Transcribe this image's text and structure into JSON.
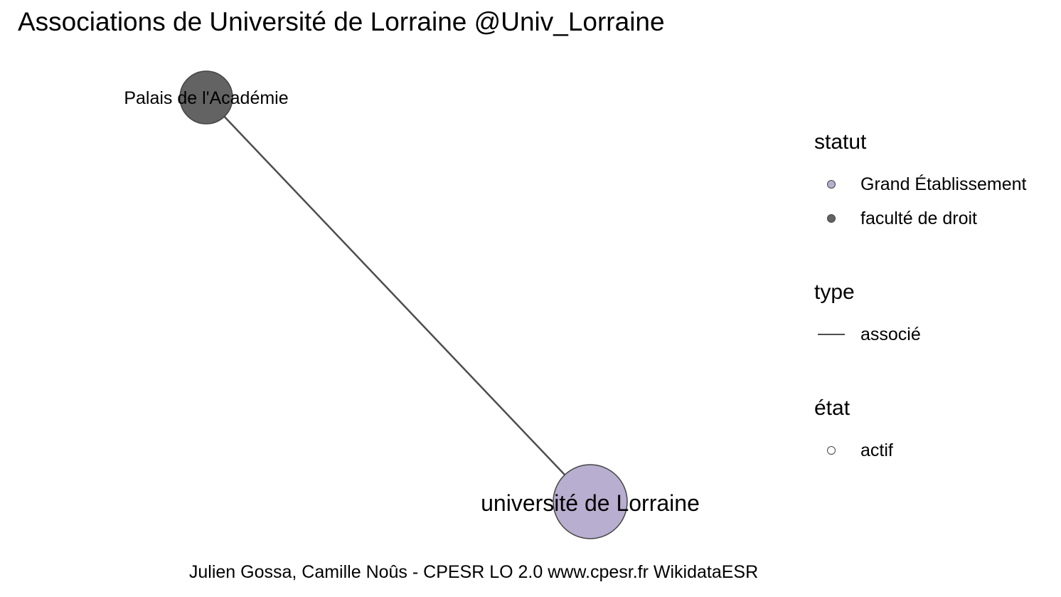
{
  "title": "Associations de Université de Lorraine @Univ_Lorraine",
  "caption": "Julien Gossa, Camille Noûs - CPESR LO 2.0 www.cpesr.fr WikidataESR",
  "nodes": [
    {
      "label": "Palais de l'Académie",
      "statut": "faculté de droit",
      "etat": "actif",
      "color": "#636363"
    },
    {
      "label": "université de Lorraine",
      "statut": "Grand Établissement",
      "etat": "actif",
      "color": "#b8aed0"
    }
  ],
  "edges": [
    {
      "from": "Palais de l'Académie",
      "to": "université de Lorraine",
      "type": "associé",
      "color": "#4d4d4d"
    }
  ],
  "legend": {
    "statut": {
      "title": "statut",
      "items": [
        {
          "label": "Grand Établissement",
          "color": "#b8aed0"
        },
        {
          "label": "faculté de droit",
          "color": "#636363"
        }
      ]
    },
    "type": {
      "title": "type",
      "items": [
        {
          "label": "associé",
          "color": "#4d4d4d"
        }
      ]
    },
    "etat": {
      "title": "état",
      "items": [
        {
          "label": "actif",
          "color": "#ffffff"
        }
      ]
    }
  }
}
